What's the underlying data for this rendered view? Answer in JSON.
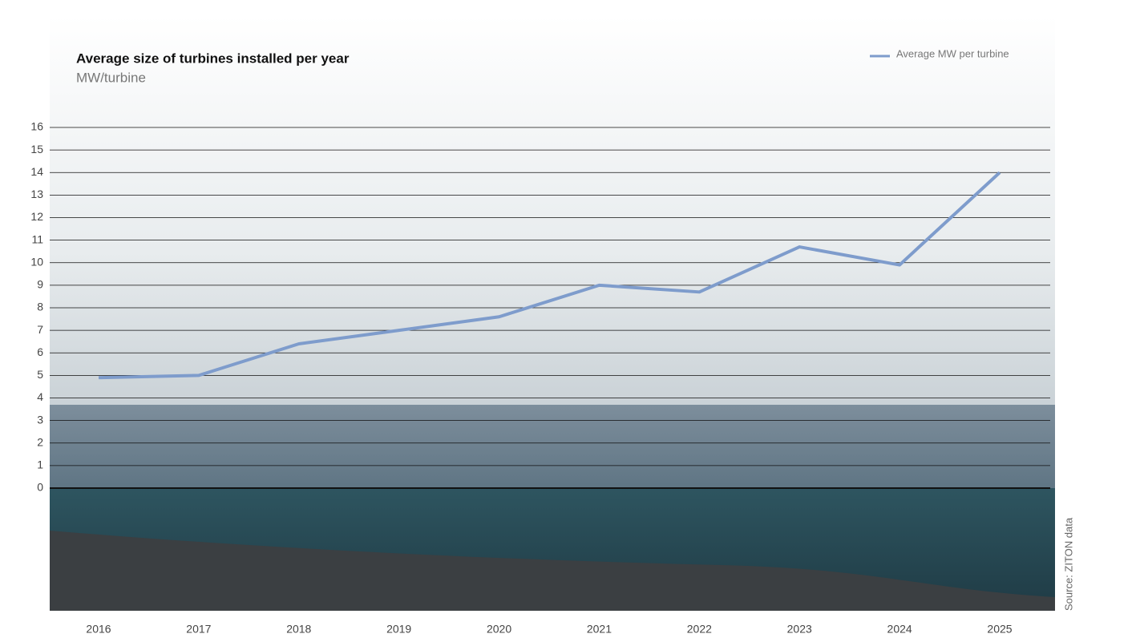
{
  "chart_data": {
    "type": "line",
    "title": "Average size of turbines installed per year",
    "subtitle": "MW/turbine",
    "categories": [
      "2016",
      "2017",
      "2018",
      "2019",
      "2020",
      "2021",
      "2022",
      "2023",
      "2024",
      "2025"
    ],
    "series": [
      {
        "name": "Average MW per turbine",
        "color": "#7e9ccc",
        "values": [
          4.9,
          5.0,
          6.4,
          7.0,
          7.6,
          9.0,
          8.7,
          10.7,
          9.9,
          14.0
        ]
      }
    ],
    "ylim": [
      0,
      16
    ],
    "yticks": [
      0,
      1,
      2,
      3,
      4,
      5,
      6,
      7,
      8,
      9,
      10,
      11,
      12,
      13,
      14,
      15,
      16
    ],
    "grid": true,
    "legend": "top-right",
    "source": "Source: ZITON data"
  }
}
